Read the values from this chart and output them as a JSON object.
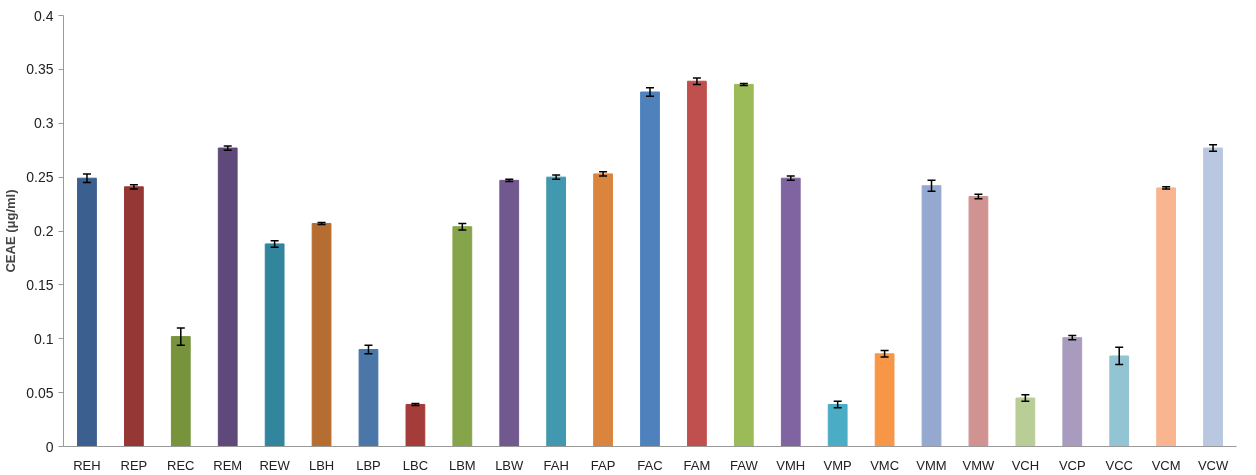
{
  "chart_data": {
    "type": "bar",
    "ylabel": "CEAE (μg/ml)",
    "categories": [
      "REH",
      "REP",
      "REC",
      "REM",
      "REW",
      "LBH",
      "LBP",
      "LBC",
      "LBM",
      "LBW",
      "FAH",
      "FAP",
      "FAC",
      "FAM",
      "FAW",
      "VMH",
      "VMP",
      "VMC",
      "VMM",
      "VMW",
      "VCH",
      "VCP",
      "VCC",
      "VCM",
      "VCW"
    ],
    "values": [
      0.249,
      0.241,
      0.102,
      0.277,
      0.188,
      0.207,
      0.09,
      0.039,
      0.204,
      0.247,
      0.25,
      0.253,
      0.329,
      0.339,
      0.336,
      0.249,
      0.039,
      0.086,
      0.242,
      0.232,
      0.045,
      0.101,
      0.084,
      0.24,
      0.277
    ],
    "errors": [
      0.004,
      0.002,
      0.008,
      0.002,
      0.003,
      0.001,
      0.004,
      0.001,
      0.003,
      0.001,
      0.002,
      0.002,
      0.004,
      0.003,
      0.001,
      0.002,
      0.003,
      0.003,
      0.005,
      0.002,
      0.003,
      0.002,
      0.008,
      0.001,
      0.003
    ],
    "colors": [
      "#3b5f8f",
      "#953735",
      "#77933c",
      "#5f497a",
      "#31859c",
      "#b66d31",
      "#4a76a8",
      "#a43c3a",
      "#86a44a",
      "#71588f",
      "#4198af",
      "#db843d",
      "#4f81bd",
      "#c0504d",
      "#9bbb59",
      "#8064a2",
      "#4bacc6",
      "#f79646",
      "#95a9d0",
      "#d19392",
      "#b9cd96",
      "#a99bbd",
      "#93c4d4",
      "#f9b590",
      "#b9c7e0"
    ],
    "ylim": [
      0,
      0.4
    ],
    "yticks": [
      0,
      0.05,
      0.1,
      0.15,
      0.2,
      0.25,
      0.3,
      0.35,
      0.4
    ],
    "grid": false
  }
}
